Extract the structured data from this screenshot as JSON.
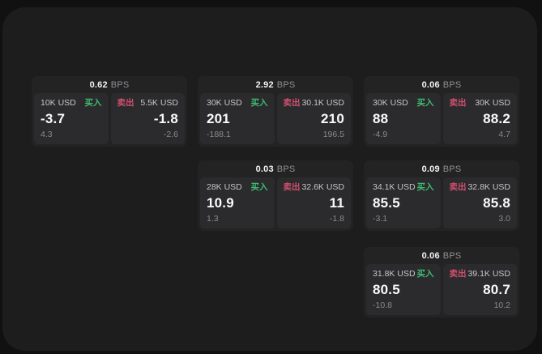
{
  "app": {
    "unit_label": "BPS",
    "buy_label": "买入",
    "sell_label": "卖出"
  },
  "colors": {
    "outer_background": "#111112",
    "panel_background": "#1d1d1e",
    "card_background": "#232324",
    "tile_background": "#2b2b2d",
    "buy_green": "#3eba70",
    "sell_red": "#d14f6e"
  },
  "cards": [
    {
      "row": 0,
      "col": 0,
      "bps": "0.62",
      "buy": {
        "amount": "10K USD",
        "value": "-3.7",
        "delta": "4.3"
      },
      "sell": {
        "amount": "5.5K USD",
        "value": "-1.8",
        "delta": "-2.6"
      }
    },
    {
      "row": 0,
      "col": 1,
      "bps": "2.92",
      "buy": {
        "amount": "30K USD",
        "value": "201",
        "delta": "-188.1"
      },
      "sell": {
        "amount": "30.1K USD",
        "value": "210",
        "delta": "196.5"
      }
    },
    {
      "row": 0,
      "col": 2,
      "bps": "0.06",
      "buy": {
        "amount": "30K USD",
        "value": "88",
        "delta": "-4.9"
      },
      "sell": {
        "amount": "30K USD",
        "value": "88.2",
        "delta": "4.7"
      }
    },
    {
      "row": 1,
      "col": 1,
      "bps": "0.03",
      "buy": {
        "amount": "28K USD",
        "value": "10.9",
        "delta": "1.3"
      },
      "sell": {
        "amount": "32.6K USD",
        "value": "11",
        "delta": "-1.8"
      }
    },
    {
      "row": 1,
      "col": 2,
      "bps": "0.09",
      "buy": {
        "amount": "34.1K USD",
        "value": "85.5",
        "delta": "-3.1"
      },
      "sell": {
        "amount": "32.8K USD",
        "value": "85.8",
        "delta": "3.0"
      }
    },
    {
      "row": 2,
      "col": 2,
      "bps": "0.06",
      "buy": {
        "amount": "31.8K USD",
        "value": "80.5",
        "delta": "-10.8"
      },
      "sell": {
        "amount": "39.1K USD",
        "value": "80.7",
        "delta": "10.2"
      }
    }
  ]
}
